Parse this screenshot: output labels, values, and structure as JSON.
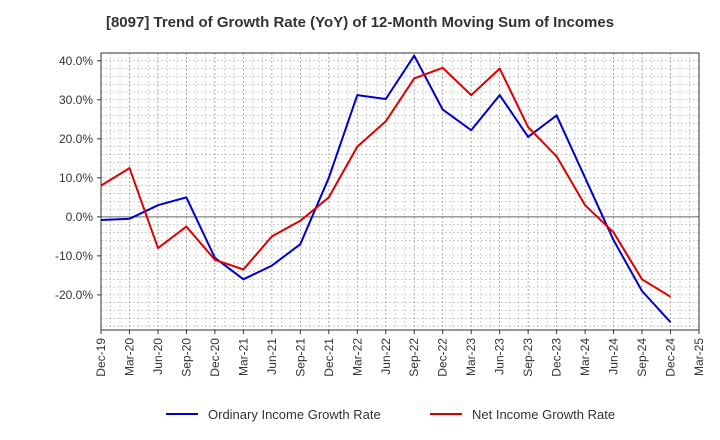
{
  "chart_data": {
    "type": "line",
    "title": "[8097]  Trend of Growth Rate (YoY) of 12-Month Moving Sum of Incomes",
    "xlabel": "",
    "ylabel": "",
    "categories": [
      "Dec-19",
      "Mar-20",
      "Jun-20",
      "Sep-20",
      "Dec-20",
      "Mar-21",
      "Jun-21",
      "Sep-21",
      "Dec-21",
      "Mar-22",
      "Jun-22",
      "Sep-22",
      "Dec-22",
      "Mar-23",
      "Jun-23",
      "Sep-23",
      "Dec-23",
      "Mar-24",
      "Jun-24",
      "Sep-24",
      "Dec-24",
      "Mar-25"
    ],
    "y_ticks": [
      "40.0%",
      "30.0%",
      "20.0%",
      "10.0%",
      "0.0%",
      "-10.0%",
      "-20.0%"
    ],
    "y_tick_values": [
      40,
      30,
      20,
      10,
      0,
      -10,
      -20
    ],
    "ylim": [
      -29,
      42
    ],
    "grid": true,
    "legend_position": "bottom",
    "series": [
      {
        "name": "Ordinary Income Growth Rate",
        "color": "#0000cc",
        "values": [
          -0.8,
          -0.5,
          3.0,
          5.0,
          -10.5,
          -16.0,
          -12.5,
          -7.0,
          10.0,
          31.2,
          30.2,
          41.3,
          27.5,
          22.2,
          31.2,
          20.5,
          26.0,
          10.0,
          -6.0,
          -19.0,
          -27.0,
          null
        ]
      },
      {
        "name": "Net Income Growth Rate",
        "color": "#dd0000",
        "values": [
          8.0,
          12.5,
          -8.0,
          -2.5,
          -11.0,
          -13.5,
          -5.0,
          -1.0,
          5.0,
          18.0,
          24.5,
          35.5,
          38.2,
          31.2,
          38.0,
          23.0,
          15.5,
          3.0,
          -4.0,
          -16.0,
          -20.5,
          null
        ]
      }
    ]
  }
}
